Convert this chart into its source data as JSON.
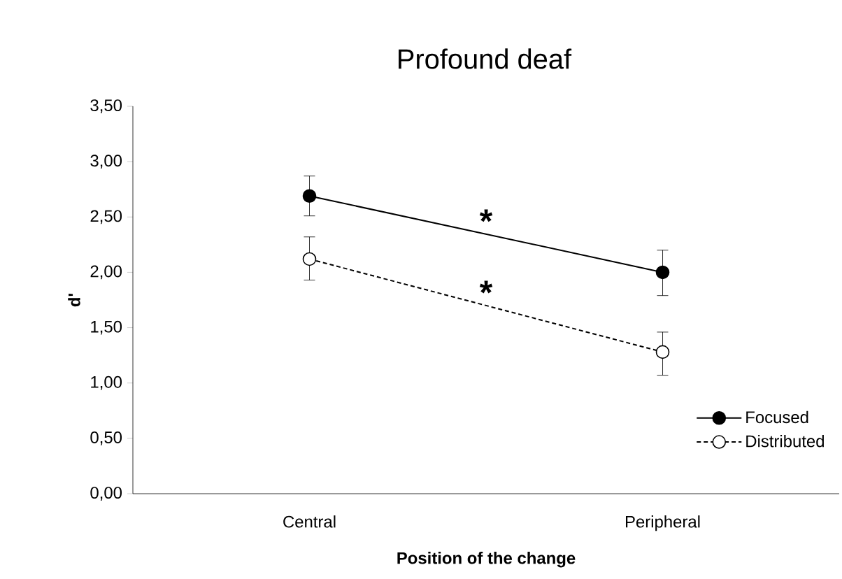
{
  "chart_data": {
    "type": "line",
    "title": "Profound deaf",
    "xlabel": "Position of the change",
    "ylabel": "d'",
    "categories": [
      "Central",
      "Peripheral"
    ],
    "series": [
      {
        "name": "Focused",
        "color": "#000000",
        "values": [
          2.69,
          2.0
        ],
        "errors": [
          [
            2.51,
            2.87
          ],
          [
            1.79,
            2.2
          ]
        ],
        "marker": "circle",
        "line_style": "solid"
      },
      {
        "name": "Distributed",
        "color": "#000000",
        "values": [
          2.12,
          1.28
        ],
        "errors": [
          [
            1.93,
            2.32
          ],
          [
            1.07,
            1.46
          ]
        ],
        "marker": "circle",
        "line_style": "dashed"
      }
    ],
    "ylim": [
      0,
      3.5
    ],
    "yticks": [
      {
        "value": 0,
        "label": "0,00"
      },
      {
        "value": 0.5,
        "label": "0,50"
      },
      {
        "value": 1,
        "label": "1,00"
      },
      {
        "value": 1.5,
        "label": "1,50"
      },
      {
        "value": 2,
        "label": "2,00"
      },
      {
        "value": 2.5,
        "label": "2,50"
      },
      {
        "value": 3,
        "label": "3,00"
      },
      {
        "value": 3.5,
        "label": "3,50"
      }
    ],
    "annotations": [
      "*",
      "*"
    ],
    "legend": "bottom right",
    "grid": false
  }
}
